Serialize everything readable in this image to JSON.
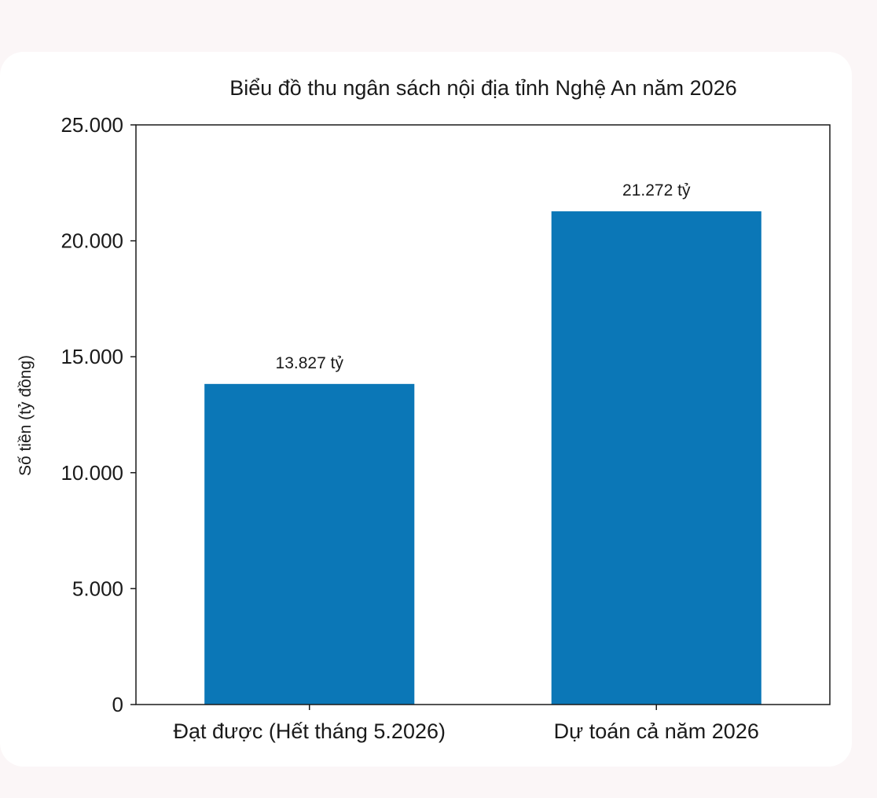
{
  "chart_data": {
    "type": "bar",
    "title": "Biểu đồ thu ngân sách nội địa tỉnh Nghệ An năm 2026",
    "xlabel": "",
    "ylabel": "Số tiền (tỷ đồng)",
    "categories": [
      "Đạt được (Hết tháng 5.2026)",
      "Dự toán cả năm 2026"
    ],
    "values": [
      13827,
      21272
    ],
    "data_labels": [
      "13.827 tỷ",
      "21.272 tỷ"
    ],
    "ylim": [
      0,
      25000
    ],
    "yticks": [
      0,
      5000,
      10000,
      15000,
      20000,
      25000
    ],
    "ytick_labels": [
      "0",
      "5.000",
      "10.000",
      "15.000",
      "20.000",
      "25.000"
    ],
    "grid": false,
    "bar_color": "#0b77b7"
  }
}
